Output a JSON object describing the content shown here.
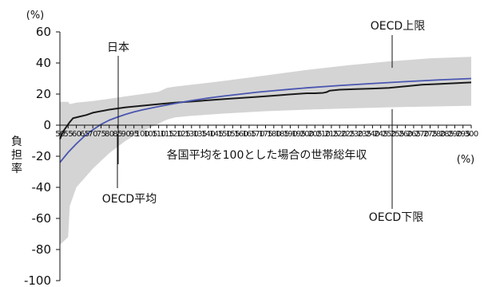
{
  "chart_data": {
    "type": "line",
    "title": "",
    "y_unit": "(%)",
    "x_unit": "(%)",
    "ylabel": "負担率",
    "xlabel": "各国平均を100とした場合の世帯総年収",
    "ylim": [
      -100,
      60
    ],
    "xlim": [
      50,
      300
    ],
    "y_ticks": [
      "60",
      "40",
      "20",
      "0",
      "-20",
      "-40",
      "-60",
      "-80",
      "-100"
    ],
    "x_ticks": [
      "50",
      "55",
      "60",
      "65",
      "70",
      "75",
      "80",
      "85",
      "90",
      "95",
      "100",
      "105",
      "110",
      "115",
      "120",
      "125",
      "130",
      "135",
      "140",
      "145",
      "150",
      "155",
      "160",
      "165",
      "170",
      "175",
      "180",
      "185",
      "190",
      "195",
      "200",
      "205",
      "210",
      "215",
      "220",
      "225",
      "230",
      "235",
      "240",
      "245",
      "250",
      "255",
      "260",
      "265",
      "270",
      "275",
      "280",
      "285",
      "290",
      "295",
      "300"
    ],
    "legend": "none",
    "grid": false,
    "annotations": {
      "japan": "日本",
      "oecd_avg": "OECD平均",
      "oecd_upper": "OECD上限",
      "oecd_lower": "OECD下限"
    },
    "colors": {
      "japan": "#1a1a1a",
      "oecd_avg": "#4a56b0",
      "band": "#d4d4d4"
    },
    "series": [
      {
        "key": "japan",
        "x": [
          50,
          52,
          54,
          56,
          58,
          62,
          66,
          70,
          80,
          90,
          100,
          110,
          120,
          130,
          140,
          150,
          160,
          170,
          180,
          190,
          200,
          205,
          210,
          212,
          214,
          220,
          230,
          240,
          250,
          260,
          270,
          280,
          290,
          300
        ],
        "values": [
          -9,
          -4,
          -1,
          2,
          4.5,
          5.5,
          6.5,
          8,
          10,
          11.5,
          12.5,
          13.5,
          14.5,
          15.2,
          16,
          16.8,
          17.5,
          18.2,
          19,
          19.8,
          20.5,
          20.5,
          20.8,
          21.2,
          22.2,
          22.8,
          23.2,
          23.5,
          24,
          25,
          26,
          26.5,
          27,
          27.5
        ]
      },
      {
        "key": "oecd_avg",
        "x": [
          50,
          55,
          60,
          65,
          70,
          75,
          80,
          85,
          90,
          95,
          100,
          110,
          120,
          130,
          140,
          150,
          160,
          170,
          180,
          190,
          200,
          220,
          240,
          260,
          280,
          300
        ],
        "values": [
          -24,
          -17.5,
          -12,
          -7,
          -3,
          0.5,
          3.2,
          5.2,
          7,
          8.5,
          9.8,
          12,
          14,
          15.8,
          17.4,
          18.8,
          20,
          21.2,
          22.2,
          23.1,
          24,
          25.5,
          26.8,
          28,
          29.1,
          30
        ]
      }
    ],
    "band": {
      "x": [
        50,
        55,
        56,
        60,
        70,
        80,
        90,
        100,
        110,
        115,
        120,
        130,
        150,
        175,
        200,
        225,
        250,
        275,
        300
      ],
      "upper": [
        15,
        15,
        13.5,
        14.5,
        15.5,
        17,
        18.5,
        20,
        21.5,
        24,
        24.8,
        26,
        28.5,
        32,
        35.5,
        38.5,
        41,
        43,
        44
      ],
      "lower": [
        -77,
        -72,
        -52,
        -40,
        -28,
        -18,
        -10,
        -4,
        1,
        3.5,
        5,
        6,
        7.5,
        9,
        10,
        10.8,
        11.5,
        12,
        12.5
      ]
    }
  }
}
